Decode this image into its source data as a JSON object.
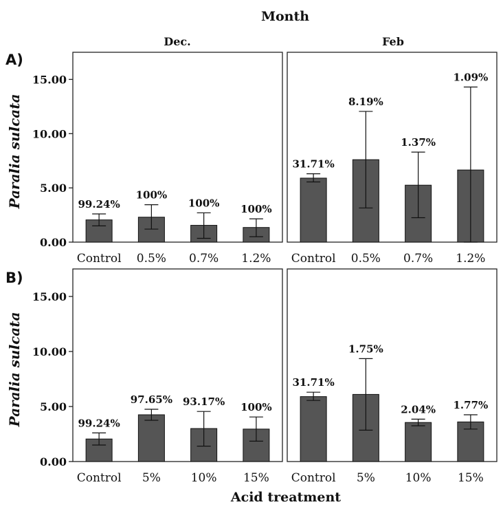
{
  "header": {
    "top_label": "Month",
    "x_label": "Acid treatment",
    "columns": [
      "Dec.",
      "Feb"
    ],
    "rows": [
      "A)",
      "B)"
    ]
  },
  "chart_data": [
    {
      "type": "bar",
      "panel": "A",
      "month": "Dec.",
      "categories": [
        "Control",
        "0.5%",
        "0.7%",
        "1.2%"
      ],
      "values": [
        2.05,
        2.3,
        1.55,
        1.35
      ],
      "error_low": [
        1.5,
        1.2,
        0.35,
        0.5
      ],
      "error_high": [
        2.6,
        3.45,
        2.7,
        2.15
      ],
      "data_labels": [
        "99.24%",
        "100%",
        "100%",
        "100%"
      ],
      "ylabel": "Paralia sulcata",
      "ylim": [
        0,
        17.5
      ],
      "yticks": [
        "0.00",
        "5.00",
        "10.00",
        "15.00"
      ],
      "color": "#555555"
    },
    {
      "type": "bar",
      "panel": "A",
      "month": "Feb",
      "categories": [
        "Control",
        "0.5%",
        "0.7%",
        "1.2%"
      ],
      "values": [
        5.9,
        7.6,
        5.25,
        6.65
      ],
      "error_low": [
        5.55,
        3.15,
        2.25,
        0
      ],
      "error_high": [
        6.3,
        12.05,
        8.3,
        14.3
      ],
      "data_labels": [
        "31.71%",
        "8.19%",
        "1.37%",
        "1.09%"
      ],
      "ylim": [
        0,
        17.5
      ],
      "color": "#555555"
    },
    {
      "type": "bar",
      "panel": "B",
      "month": "Dec.",
      "categories": [
        "Control",
        "5%",
        "10%",
        "15%"
      ],
      "values": [
        2.05,
        4.25,
        3.0,
        2.95
      ],
      "error_low": [
        1.5,
        3.75,
        1.4,
        1.85
      ],
      "error_high": [
        2.6,
        4.75,
        4.55,
        4.05
      ],
      "data_labels": [
        "99.24%",
        "97.65%",
        "93.17%",
        "100%"
      ],
      "ylabel": "Paralia sulcata",
      "ylim": [
        0,
        17.5
      ],
      "yticks": [
        "0.00",
        "5.00",
        "10.00",
        "15.00"
      ],
      "color": "#555555"
    },
    {
      "type": "bar",
      "panel": "B",
      "month": "Feb",
      "categories": [
        "Control",
        "5%",
        "10%",
        "15%"
      ],
      "values": [
        5.9,
        6.1,
        3.55,
        3.6
      ],
      "error_low": [
        5.55,
        2.85,
        3.25,
        2.95
      ],
      "error_high": [
        6.3,
        9.35,
        3.85,
        4.25
      ],
      "data_labels": [
        "31.71%",
        "1.75%",
        "2.04%",
        "1.77%"
      ],
      "ylim": [
        0,
        17.5
      ],
      "color": "#555555"
    }
  ]
}
